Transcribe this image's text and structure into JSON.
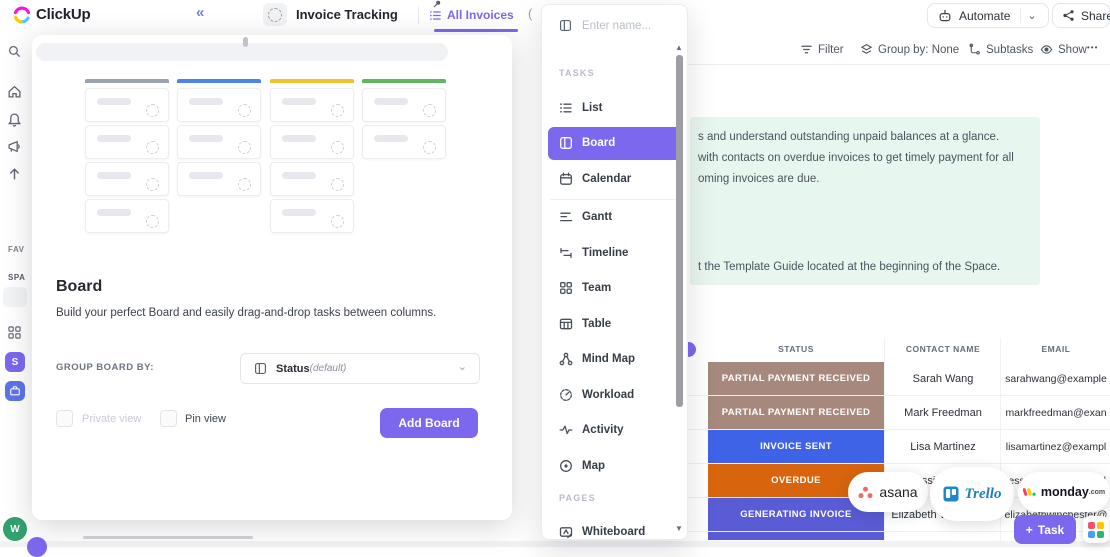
{
  "topbar": {
    "brand": "ClickUp",
    "collapse_glyph": "«",
    "tab_project": "Invoice Tracking",
    "tab_view": "All Invoices",
    "automate": "Automate",
    "chevron": "⌄",
    "share": "Share"
  },
  "toolbar": {
    "filter": "Filter",
    "group_by": "Group by: None",
    "subtasks": "Subtasks",
    "show": "Show",
    "more": "•••"
  },
  "sidebar": {
    "favorites": "FAV",
    "spaces": "SPA",
    "space_avatar": "S",
    "workspace_avatar": "W"
  },
  "banner": {
    "bg_color": "#e7f6ee",
    "lines": [
      "s and understand outstanding unpaid balances at a glance.",
      "with contacts on overdue invoices to get timely payment for all",
      "oming invoices are due.",
      "t the Template Guide located at the beginning of the Space."
    ]
  },
  "view_menu": {
    "name_placeholder": "Enter name...",
    "tasks_section": "TASKS",
    "pages_section": "PAGES",
    "accent": "#7b68ee",
    "items": [
      {
        "label": "List",
        "icon": "list"
      },
      {
        "label": "Board",
        "icon": "board",
        "selected": true
      },
      {
        "label": "Calendar",
        "icon": "calendar",
        "divider_after": true
      },
      {
        "label": "Gantt",
        "icon": "gantt"
      },
      {
        "label": "Timeline",
        "icon": "timeline"
      },
      {
        "label": "Team",
        "icon": "team"
      },
      {
        "label": "Table",
        "icon": "table"
      },
      {
        "label": "Mind Map",
        "icon": "mindmap"
      },
      {
        "label": "Workload",
        "icon": "workload"
      },
      {
        "label": "Activity",
        "icon": "activity"
      },
      {
        "label": "Map",
        "icon": "map"
      }
    ],
    "pages_items": [
      {
        "label": "Whiteboard",
        "icon": "whiteboard"
      }
    ]
  },
  "modal": {
    "title": "Board",
    "description": "Build your perfect Board and easily drag-and-drop tasks between columns.",
    "group_label": "GROUP BOARD BY:",
    "group_value": "Status",
    "group_value_note": "(default)",
    "chevron": "⌄",
    "private_view": "Private view",
    "pin_view": "Pin view",
    "add_button": "Add Board",
    "preview_columns": [
      {
        "color": "#9aa2ad",
        "cards": 4
      },
      {
        "color": "#4a86e8",
        "cards": 3
      },
      {
        "color": "#f2c233",
        "cards": 4
      },
      {
        "color": "#5fb762",
        "cards": 2
      }
    ]
  },
  "table": {
    "headers": [
      "STATUS",
      "CONTACT NAME",
      "EMAIL"
    ],
    "rows": [
      {
        "status": "PARTIAL PAYMENT RECEIVED",
        "color": "#a6897c",
        "contact": "Sarah Wang",
        "email": "sarahwang@example"
      },
      {
        "status": "PARTIAL PAYMENT RECEIVED",
        "color": "#a6897c",
        "contact": "Mark Freedman",
        "email": "markfreedman@exan"
      },
      {
        "status": "INVOICE SENT",
        "color": "#3f63e6",
        "contact": "Lisa Martinez",
        "email": "lisamartinez@exampl"
      },
      {
        "status": "OVERDUE",
        "color": "#d8650d",
        "contact": "Jessie Brown",
        "email": "jessiebrown@exampl"
      },
      {
        "status": "GENERATING INVOICE",
        "color": "#5a5cd6",
        "contact": "Elizabeth Winchester",
        "email": "elizabethwinchester@"
      }
    ],
    "extra_row_color": "#5a5cd6"
  },
  "overlays": {
    "asana": "asana",
    "trello": "Trello",
    "monday": "monday",
    "monday_tld": ".com",
    "task_plus": "+",
    "task_label": "Task"
  }
}
